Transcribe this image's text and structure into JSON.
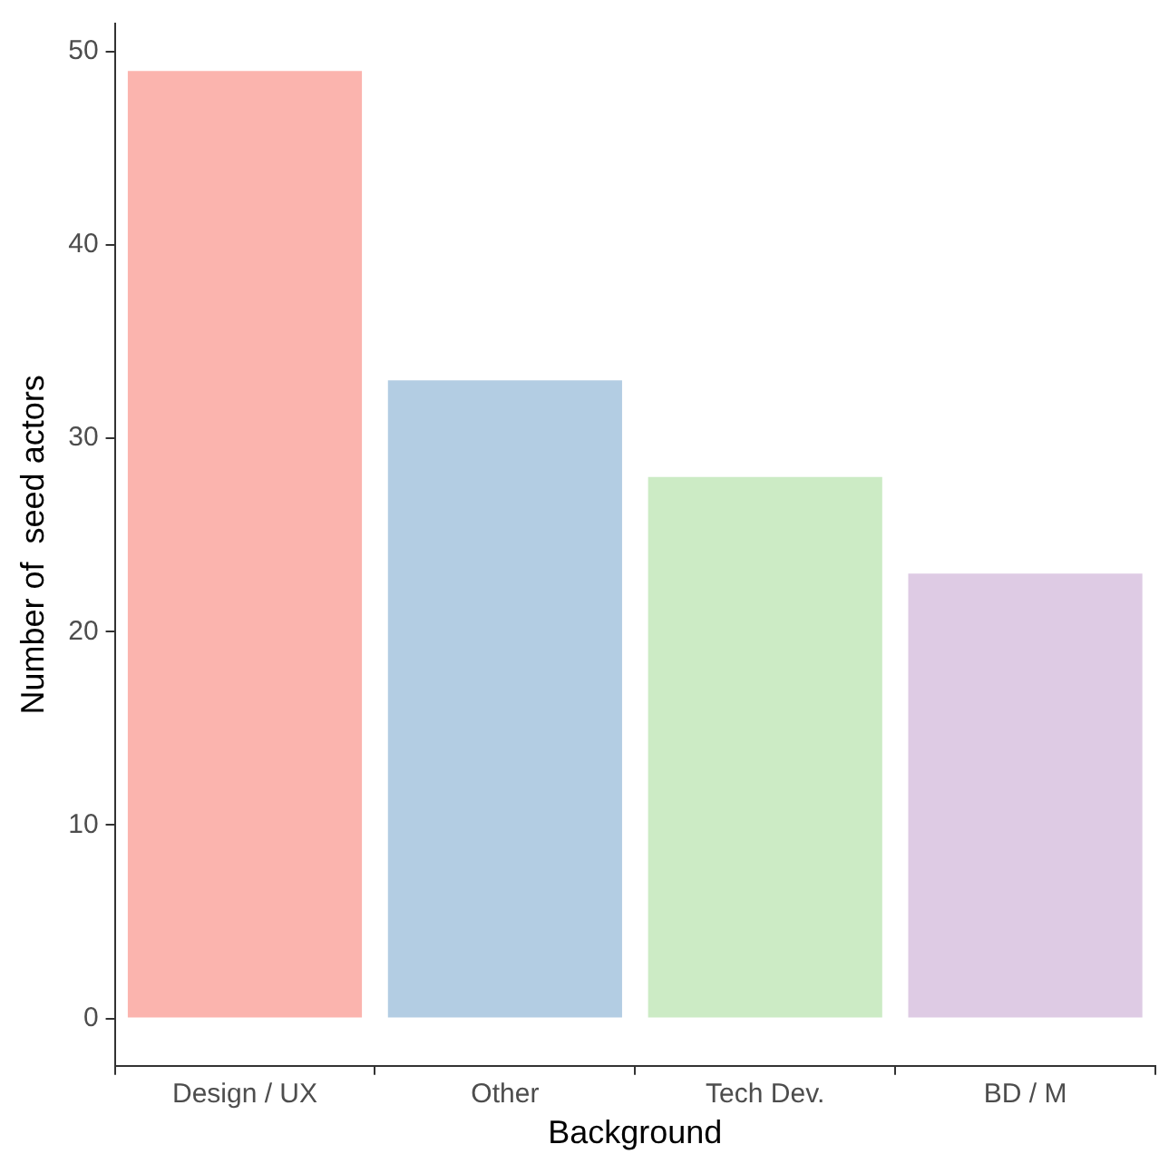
{
  "chart_data": {
    "type": "bar",
    "xlabel": "Background",
    "ylabel": "Number of  seed actors",
    "categories": [
      "Design / UX",
      "Other",
      "Tech Dev.",
      "BD / M"
    ],
    "values": [
      49,
      33,
      28,
      23
    ],
    "colors": [
      "#fbb4ae",
      "#b3cde3",
      "#ccebc5",
      "#decbe4"
    ],
    "ylim": [
      -2.45,
      51.45
    ],
    "yticks": [
      0,
      10,
      20,
      30,
      40,
      50
    ],
    "grid": false,
    "legend": false
  }
}
